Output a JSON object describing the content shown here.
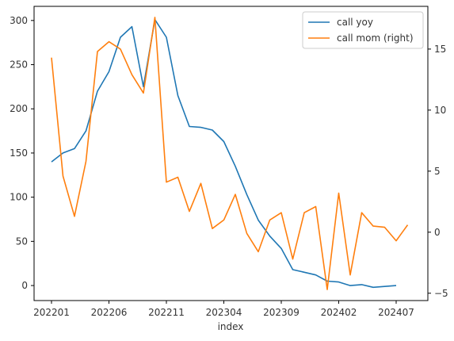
{
  "chart_data": {
    "type": "line",
    "title": "",
    "xlabel": "index",
    "x_tick_labels": [
      "202201",
      "202206",
      "202211",
      "202304",
      "202309",
      "202402",
      "202407"
    ],
    "x": [
      "202201",
      "202202",
      "202203",
      "202204",
      "202205",
      "202206",
      "202207",
      "202208",
      "202209",
      "202210",
      "202211",
      "202212",
      "202301",
      "202302",
      "202303",
      "202304",
      "202305",
      "202306",
      "202307",
      "202308",
      "202309",
      "202310",
      "202311",
      "202312",
      "202401",
      "202402",
      "202403",
      "202404",
      "202405",
      "202406",
      "202407",
      "202408"
    ],
    "left_axis": {
      "ylim": [
        -17,
        316
      ],
      "ticks": [
        0,
        50,
        100,
        150,
        200,
        250,
        300
      ]
    },
    "right_axis": {
      "ylim": [
        -5.6,
        18.5
      ],
      "ticks": [
        -5,
        0,
        5,
        10,
        15
      ]
    },
    "series": [
      {
        "name": "call yoy",
        "axis": "left",
        "color": "#1f77b4",
        "values": [
          140,
          150,
          155,
          175,
          220,
          242,
          281,
          293,
          225,
          301,
          281,
          215,
          180,
          179,
          176,
          163,
          135,
          103,
          74,
          56,
          42,
          18,
          15,
          12,
          5,
          4,
          0,
          1,
          -2,
          -1,
          0,
          null
        ]
      },
      {
        "name": "call mom (right)",
        "axis": "right",
        "color": "#ff7f0e",
        "values": [
          14.3,
          4.6,
          1.3,
          5.8,
          14.8,
          15.6,
          15.0,
          12.9,
          11.4,
          17.6,
          4.1,
          4.5,
          1.7,
          4.0,
          0.3,
          1.0,
          3.1,
          -0.1,
          -1.6,
          1.0,
          1.6,
          -2.2,
          1.6,
          2.1,
          -4.7,
          3.2,
          -3.5,
          1.6,
          0.5,
          0.4,
          -0.7,
          0.6
        ]
      }
    ],
    "legend_position": "top-right",
    "grid": false
  }
}
